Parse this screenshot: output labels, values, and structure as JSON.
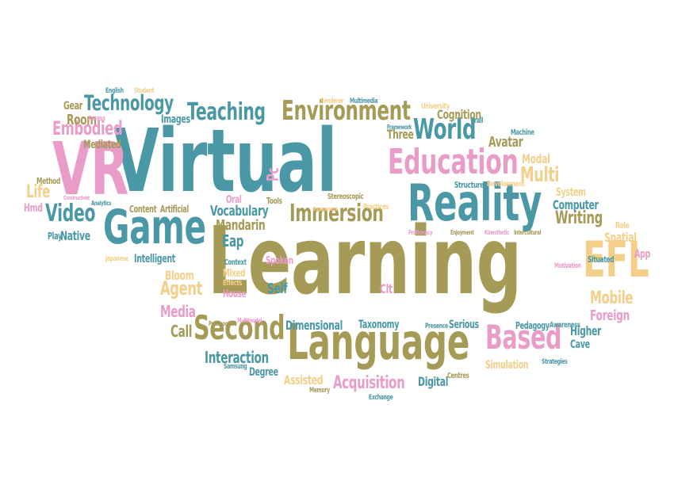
{
  "colors": {
    "teal": "#4a98a6",
    "olive": "#a59a56",
    "pink": "#e99cc8",
    "yellow": "#f3cf8a"
  },
  "words": [
    {
      "text": "Virtual",
      "color": "teal"
    },
    {
      "text": "Learning",
      "color": "olive"
    },
    {
      "text": "Reality",
      "color": "teal"
    },
    {
      "text": "Language",
      "color": "olive"
    },
    {
      "text": "VR",
      "color": "pink"
    },
    {
      "text": "Game",
      "color": "teal"
    },
    {
      "text": "Education",
      "color": "pink"
    },
    {
      "text": "EFL",
      "color": "yellow"
    },
    {
      "text": "Based",
      "color": "pink"
    },
    {
      "text": "Second",
      "color": "olive"
    },
    {
      "text": "World",
      "color": "teal"
    },
    {
      "text": "Environment",
      "color": "olive"
    },
    {
      "text": "Immersion",
      "color": "olive"
    },
    {
      "text": "Technology",
      "color": "teal"
    },
    {
      "text": "Teaching",
      "color": "teal"
    },
    {
      "text": "Video",
      "color": "teal"
    },
    {
      "text": "Embodied",
      "color": "pink"
    },
    {
      "text": "Multi",
      "color": "yellow"
    },
    {
      "text": "Writing",
      "color": "olive"
    },
    {
      "text": "Mobile",
      "color": "yellow"
    },
    {
      "text": "Foreign",
      "color": "pink"
    },
    {
      "text": "Acquisition",
      "color": "pink"
    },
    {
      "text": "Interaction",
      "color": "teal"
    },
    {
      "text": "Agent",
      "color": "yellow"
    },
    {
      "text": "Media",
      "color": "pink"
    },
    {
      "text": "Vocabulary",
      "color": "teal"
    },
    {
      "text": "Mandarin",
      "color": "olive"
    },
    {
      "text": "Eap",
      "color": "teal"
    },
    {
      "text": "Spatial",
      "color": "yellow"
    },
    {
      "text": "Higher",
      "color": "teal"
    },
    {
      "text": "Cave",
      "color": "teal"
    },
    {
      "text": "Dimensional",
      "color": "teal"
    },
    {
      "text": "Taxonomy",
      "color": "teal"
    },
    {
      "text": "Serious",
      "color": "teal"
    },
    {
      "text": "Digital",
      "color": "teal"
    },
    {
      "text": "Assisted",
      "color": "yellow"
    },
    {
      "text": "Degree",
      "color": "teal"
    },
    {
      "text": "Simulation",
      "color": "yellow"
    },
    {
      "text": "Computer",
      "color": "teal"
    },
    {
      "text": "System",
      "color": "yellow"
    },
    {
      "text": "Avatar",
      "color": "olive"
    },
    {
      "text": "Modal",
      "color": "yellow"
    },
    {
      "text": "Cognition",
      "color": "olive"
    },
    {
      "text": "Three",
      "color": "olive"
    },
    {
      "text": "Native",
      "color": "teal"
    },
    {
      "text": "Intelligent",
      "color": "teal"
    },
    {
      "text": "Life",
      "color": "yellow"
    },
    {
      "text": "Room",
      "color": "olive"
    },
    {
      "text": "Gear",
      "color": "olive"
    },
    {
      "text": "Mediated",
      "color": "olive"
    },
    {
      "text": "Images",
      "color": "teal"
    },
    {
      "text": "Content",
      "color": "olive"
    },
    {
      "text": "Artificial",
      "color": "olive"
    },
    {
      "text": "Spoken",
      "color": "pink"
    },
    {
      "text": "Self",
      "color": "teal"
    },
    {
      "text": "Clt",
      "color": "pink"
    },
    {
      "text": "Bloom",
      "color": "yellow"
    },
    {
      "text": "Mixed",
      "color": "yellow"
    },
    {
      "text": "House",
      "color": "pink"
    },
    {
      "text": "Effects",
      "color": "yellow"
    },
    {
      "text": "Context",
      "color": "teal"
    },
    {
      "text": "Call",
      "color": "olive"
    },
    {
      "text": "Pc",
      "color": "pink"
    },
    {
      "text": "Oral",
      "color": "pink"
    },
    {
      "text": "Tools",
      "color": "olive"
    },
    {
      "text": "Stereoscopic",
      "color": "olive"
    },
    {
      "text": "Practices",
      "color": "yellow"
    },
    {
      "text": "Structure",
      "color": "teal"
    },
    {
      "text": "Development",
      "color": "yellow"
    },
    {
      "text": "Machine",
      "color": "teal"
    },
    {
      "text": "Vrall",
      "color": "teal"
    },
    {
      "text": "University",
      "color": "yellow"
    },
    {
      "text": "Framework",
      "color": "teal"
    },
    {
      "text": "Multimedia",
      "color": "teal"
    },
    {
      "text": "Renderer",
      "color": "yellow"
    },
    {
      "text": "English",
      "color": "teal"
    },
    {
      "text": "Student",
      "color": "yellow"
    },
    {
      "text": "Access",
      "color": "pink"
    },
    {
      "text": "Method",
      "color": "olive"
    },
    {
      "text": "Hmd",
      "color": "pink"
    },
    {
      "text": "Play",
      "color": "teal"
    },
    {
      "text": "Japanese",
      "color": "yellow"
    },
    {
      "text": "Analytics",
      "color": "teal"
    },
    {
      "text": "Proficiency",
      "color": "pink"
    },
    {
      "text": "Enjoyment",
      "color": "olive"
    },
    {
      "text": "Kinesthetic",
      "color": "pink"
    },
    {
      "text": "Intercultural",
      "color": "olive"
    },
    {
      "text": "Role",
      "color": "yellow"
    },
    {
      "text": "App",
      "color": "pink"
    },
    {
      "text": "Situated",
      "color": "teal"
    },
    {
      "text": "Motivation",
      "color": "pink"
    },
    {
      "text": "Pedagogy",
      "color": "teal"
    },
    {
      "text": "Awareness",
      "color": "teal"
    },
    {
      "text": "Presence",
      "color": "teal"
    },
    {
      "text": "Strategies",
      "color": "teal"
    },
    {
      "text": "Centres",
      "color": "olive"
    },
    {
      "text": "Memory",
      "color": "olive"
    },
    {
      "text": "Exchange",
      "color": "teal"
    },
    {
      "text": "Samsung",
      "color": "teal"
    },
    {
      "text": "Pedagogical",
      "color": "olive"
    },
    {
      "text": "Multimodal",
      "color": "pink"
    },
    {
      "text": "Engagement",
      "color": "yellow"
    },
    {
      "text": "Constructivist",
      "color": "pink"
    }
  ]
}
